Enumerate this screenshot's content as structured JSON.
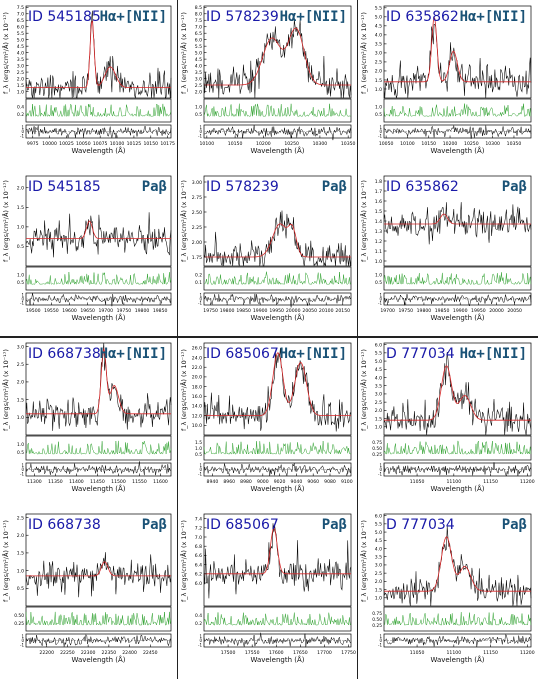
{
  "chart_data": [
    {
      "type": "line",
      "id_label": "ID 545185",
      "line_label": "Hα+[NII]",
      "xlabel": "Wavelength (Å)",
      "ylabel": "f_λ (ergs/cm²/Å) (x 10⁻¹⁷)",
      "xlim": [
        9965,
        10180
      ],
      "ylim": [
        0.5,
        7.6
      ],
      "xticks": [
        9975,
        10000,
        10025,
        10050,
        10075,
        10100,
        10125,
        10150,
        10175
      ],
      "yticks": [
        1.0,
        1.5,
        2.0,
        2.5,
        3.0,
        3.5,
        4.0,
        4.5,
        5.0,
        5.5,
        6.0,
        6.5,
        7.0,
        7.5
      ],
      "model": {
        "continuum": 1.3,
        "lines": [
          {
            "center": 10063,
            "amp": 5.2,
            "sigma": 3
          },
          {
            "center": 10090,
            "amp": 1.6,
            "sigma": 8
          }
        ]
      },
      "err_yticks": [
        "0.4",
        "0.2"
      ],
      "resid_yticks": [
        "1",
        "0",
        "-1"
      ]
    },
    {
      "type": "line",
      "id_label": "ID 578239",
      "line_label": "Hα+[NII]",
      "xlabel": "Wavelength (Å)",
      "ylabel": "f_λ (ergs/cm²/Å) (x 10⁻¹⁷)",
      "xlim": [
        10095,
        10355
      ],
      "ylim": [
        1.5,
        8.6
      ],
      "xticks": [
        10100,
        10150,
        10200,
        10250,
        10300,
        10350
      ],
      "yticks": [
        2.0,
        2.5,
        3.0,
        3.5,
        4.0,
        4.5,
        5.0,
        5.5,
        6.0,
        6.5,
        7.0,
        7.5,
        8.0,
        8.5
      ],
      "model": {
        "continuum": 2.5,
        "lines": [
          {
            "center": 10215,
            "amp": 3.6,
            "sigma": 16
          },
          {
            "center": 10258,
            "amp": 4.3,
            "sigma": 14
          }
        ]
      },
      "err_yticks": [
        "1.0",
        "0.5"
      ],
      "resid_yticks": [
        "1",
        "0",
        "-1"
      ]
    },
    {
      "type": "line",
      "id_label": "ID 635862",
      "line_label": "Hα+[NII]",
      "xlabel": "Wavelength (Å)",
      "ylabel": "f_λ (ergs/cm²/Å) (x 10⁻¹⁷)",
      "xlim": [
        10045,
        10390
      ],
      "ylim": [
        0.5,
        5.6
      ],
      "xticks": [
        10050,
        10100,
        10150,
        10200,
        10250,
        10300,
        10350
      ],
      "yticks": [
        1.0,
        1.5,
        2.0,
        2.5,
        3.0,
        3.5,
        4.0,
        4.5,
        5.0,
        5.5
      ],
      "model": {
        "continuum": 1.4,
        "lines": [
          {
            "center": 10163,
            "amp": 3.6,
            "sigma": 6
          },
          {
            "center": 10208,
            "amp": 1.7,
            "sigma": 9
          }
        ]
      },
      "err_yticks": [
        "1.0",
        "0.5"
      ],
      "resid_yticks": [
        "1",
        "0",
        "-1"
      ]
    },
    {
      "type": "line",
      "id_label": "ID 545185",
      "line_label": "Paβ",
      "xlabel": "Wavelength (Å)",
      "ylabel": "f_λ (ergs/cm²/Å) (x 10⁻¹⁷)",
      "xlim": [
        19480,
        19880
      ],
      "ylim": [
        0.0,
        2.3
      ],
      "xticks": [
        19500,
        19550,
        19600,
        19650,
        19700,
        19750,
        19800,
        19850
      ],
      "yticks": [
        0.5,
        1.0,
        1.5,
        2.0
      ],
      "model": {
        "continuum": 0.7,
        "lines": [
          {
            "center": 19655,
            "amp": 0.45,
            "sigma": 8
          }
        ]
      },
      "err_yticks": [
        "1.0",
        "0.5"
      ],
      "resid_yticks": [
        "1",
        "0",
        "-1"
      ]
    },
    {
      "type": "line",
      "id_label": "ID 578239",
      "line_label": "Paβ",
      "xlabel": "Wavelength (Å)",
      "ylabel": "f_λ (ergs/cm²/Å) (x 10⁻¹⁷)",
      "xlim": [
        19730,
        20175
      ],
      "ylim": [
        1.6,
        3.1
      ],
      "xticks": [
        19750,
        19800,
        19850,
        19900,
        19950,
        20000,
        20050,
        20100,
        20150
      ],
      "yticks": [
        1.75,
        2.0,
        2.25,
        2.5,
        2.75,
        3.0
      ],
      "model": {
        "continuum": 1.75,
        "lines": [
          {
            "center": 19960,
            "amp": 0.55,
            "sigma": 22
          },
          {
            "center": 19998,
            "amp": 0.4,
            "sigma": 12
          }
        ]
      },
      "err_yticks": [
        "0.2",
        "0.1"
      ],
      "resid_yticks": [
        "1",
        "0",
        "-1"
      ]
    },
    {
      "type": "line",
      "id_label": "ID 635862",
      "line_label": "Paβ",
      "xlabel": "Wavelength (Å)",
      "ylabel": "f_λ (ergs/cm²/Å) (x 10⁻¹⁷)",
      "xlim": [
        19690,
        20095
      ],
      "ylim": [
        0.95,
        1.85
      ],
      "xticks": [
        19700,
        19750,
        19800,
        19850,
        19900,
        19950,
        20000,
        20050
      ],
      "yticks": [
        1.0,
        1.1,
        1.2,
        1.3,
        1.4,
        1.5,
        1.6,
        1.7,
        1.8
      ],
      "model": {
        "continuum": 1.37,
        "lines": [
          {
            "center": 19855,
            "amp": 0.1,
            "sigma": 10
          }
        ]
      },
      "err_yticks": [
        "1.0",
        "0.5"
      ],
      "resid_yticks": [
        "1",
        "0",
        "-1"
      ]
    },
    {
      "type": "line",
      "id_label": "ID 668738",
      "line_label": "Hα+[NII]",
      "xlabel": "Wavelength (Å)",
      "ylabel": "f_λ (ergs/cm²/Å) (x 10⁻¹⁷)",
      "xlim": [
        11280,
        11625
      ],
      "ylim": [
        0.5,
        3.1
      ],
      "xticks": [
        11300,
        11350,
        11400,
        11450,
        11500,
        11550,
        11600
      ],
      "yticks": [
        1.0,
        1.5,
        2.0,
        2.5,
        3.0
      ],
      "model": {
        "continuum": 1.1,
        "lines": [
          {
            "center": 11465,
            "amp": 1.8,
            "sigma": 6
          },
          {
            "center": 11490,
            "amp": 0.8,
            "sigma": 10
          }
        ]
      },
      "err_yticks": [
        "1.0",
        "0.5"
      ],
      "resid_yticks": [
        "1",
        "0",
        "-1"
      ]
    },
    {
      "type": "line",
      "id_label": "ID 685067",
      "line_label": "Hα+[NII]",
      "xlabel": "Wavelength (Å)",
      "ylabel": "f_λ (ergs/cm²/Å) (x 10⁻¹⁷)",
      "xlim": [
        8930,
        9105
      ],
      "ylim": [
        8.0,
        27.0
      ],
      "xticks": [
        8940,
        8960,
        8980,
        9000,
        9020,
        9040,
        9060,
        9080,
        9100
      ],
      "yticks": [
        10.0,
        12.0,
        14.0,
        16.0,
        18.0,
        20.0,
        22.0,
        24.0,
        26.0
      ],
      "model": {
        "continuum": 12,
        "lines": [
          {
            "center": 9018,
            "amp": 13,
            "sigma": 6
          },
          {
            "center": 9045,
            "amp": 11,
            "sigma": 7
          }
        ]
      },
      "err_yticks": [
        "1.5",
        "1.0",
        "0.5"
      ],
      "resid_yticks": [
        "1",
        "0",
        "-1"
      ]
    },
    {
      "type": "line",
      "id_label": "D 777034",
      "line_label": "Hα+[NII]",
      "xlabel": "Wavelength (Å)",
      "ylabel": "f_λ (ergs/cm²/Å) (x 10⁻¹⁷)",
      "xlim": [
        11005,
        11205
      ],
      "ylim": [
        0.5,
        6.1
      ],
      "xticks": [
        11050,
        11100,
        11150,
        11200
      ],
      "yticks": [
        1.0,
        1.5,
        2.0,
        2.5,
        3.0,
        3.5,
        4.0,
        4.5,
        5.0,
        5.5,
        6.0
      ],
      "model": {
        "continuum": 1.4,
        "lines": [
          {
            "center": 11090,
            "amp": 3.3,
            "sigma": 7
          },
          {
            "center": 11115,
            "amp": 1.5,
            "sigma": 8
          }
        ]
      },
      "err_yticks": [
        "0.75",
        "0.50",
        "0.25"
      ],
      "resid_yticks": [
        "1",
        "0",
        "-1"
      ]
    },
    {
      "type": "line",
      "id_label": "ID 668738",
      "line_label": "Paβ",
      "xlabel": "Wavelength (Å)",
      "ylabel": "f_λ (ergs/cm²/Å) (x 10⁻¹⁷)",
      "xlim": [
        22150,
        22500
      ],
      "ylim": [
        0.0,
        2.6
      ],
      "xticks": [
        22200,
        22250,
        22300,
        22350,
        22400,
        22450
      ],
      "yticks": [
        0.5,
        1.0,
        1.5,
        2.0,
        2.5
      ],
      "model": {
        "continuum": 0.85,
        "lines": [
          {
            "center": 22340,
            "amp": 0.4,
            "sigma": 8
          }
        ]
      },
      "err_yticks": [
        "0.50",
        "0.25"
      ],
      "resid_yticks": [
        "1",
        "0",
        "-1"
      ]
    },
    {
      "type": "line",
      "id_label": "ID 685067",
      "line_label": "Paβ",
      "xlabel": "Wavelength (Å)",
      "ylabel": "f_λ (ergs/cm²/Å) (x 10⁻¹⁷)",
      "xlim": [
        17450,
        17755
      ],
      "ylim": [
        5.5,
        7.5
      ],
      "xticks": [
        17500,
        17550,
        17600,
        17650,
        17700,
        17750
      ],
      "yticks": [
        6.0,
        6.2,
        6.4,
        6.6,
        6.8,
        7.0,
        7.2,
        7.4
      ],
      "model": {
        "continuum": 6.2,
        "lines": [
          {
            "center": 17595,
            "amp": 1.0,
            "sigma": 7
          }
        ]
      },
      "err_yticks": [
        "0.4",
        "0.2"
      ],
      "resid_yticks": [
        "1",
        "0",
        "-1"
      ]
    },
    {
      "type": "line",
      "id_label": "D 777034",
      "line_label": "Paβ",
      "xlabel": "Wavelength (Å)",
      "ylabel": "f_λ (ergs/cm²/Å) (x 10⁻¹⁷)",
      "xlim": [
        11005,
        11205
      ],
      "ylim": [
        0.5,
        6.1
      ],
      "xticks": [
        11050,
        11100,
        11150,
        11200
      ],
      "yticks": [
        1.0,
        1.5,
        2.0,
        2.5,
        3.0,
        3.5,
        4.0,
        4.5,
        5.0,
        5.5,
        6.0
      ],
      "model": {
        "continuum": 1.4,
        "lines": [
          {
            "center": 11090,
            "amp": 3.3,
            "sigma": 7
          },
          {
            "center": 11115,
            "amp": 1.5,
            "sigma": 8
          }
        ]
      },
      "err_yticks": [
        "0.75",
        "0.50",
        "0.25"
      ],
      "resid_yticks": [
        "1",
        "0",
        "-1"
      ]
    }
  ],
  "colors": {
    "data": "#000000",
    "model": "#d62728",
    "error": "#2ca02c",
    "residual": "#000000",
    "id": "#1a1aa8",
    "line": "#1a5276"
  }
}
